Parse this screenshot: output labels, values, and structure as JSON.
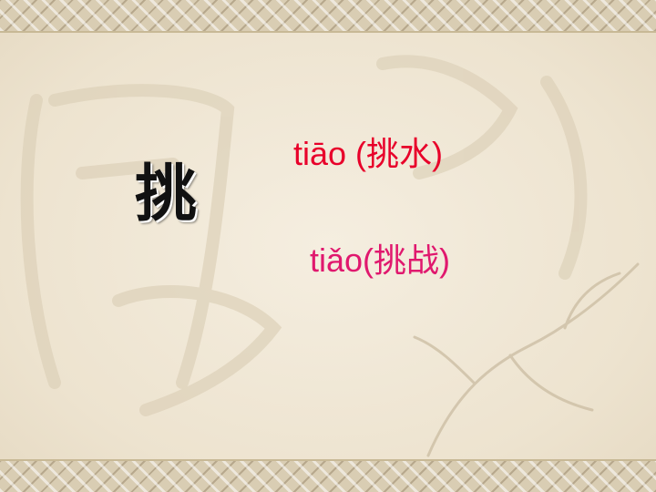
{
  "slide": {
    "character": "挑",
    "readings": [
      {
        "text": "tiāo (挑水)",
        "color": "#e8002a"
      },
      {
        "text": "tiǎo(挑战)",
        "color": "#e0186e"
      }
    ]
  }
}
